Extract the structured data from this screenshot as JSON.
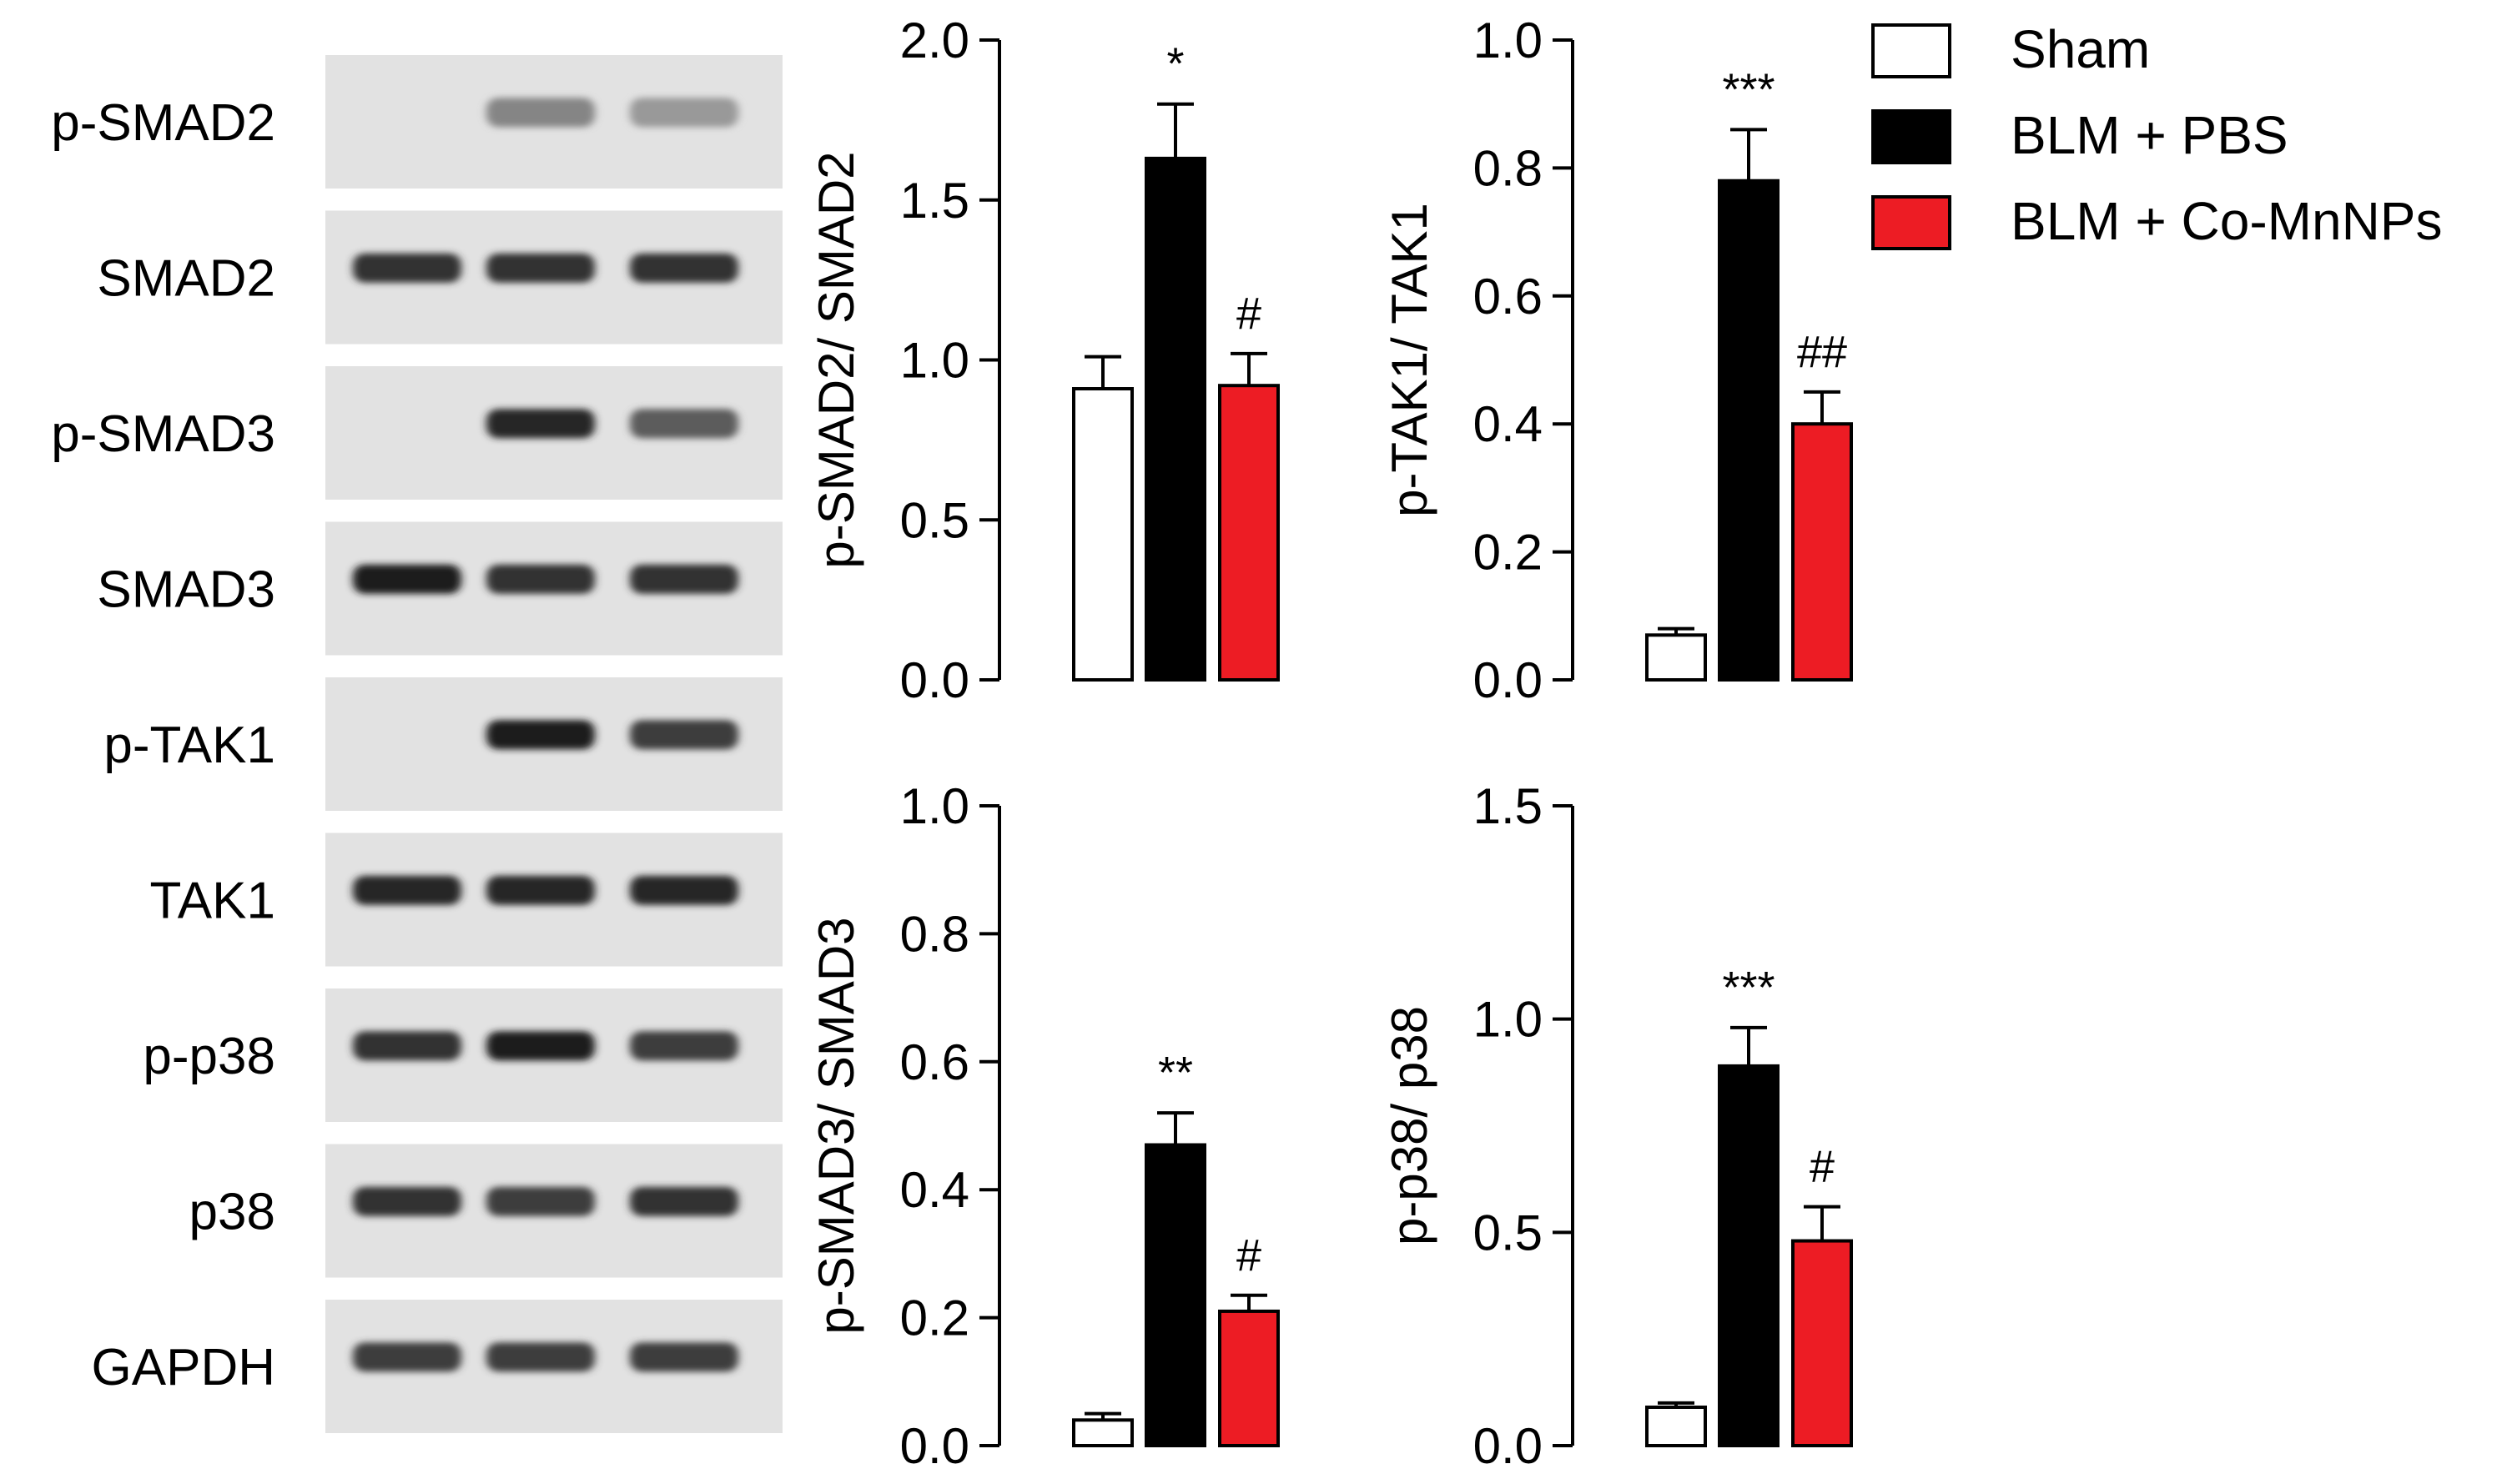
{
  "colors": {
    "sham": "#ffffff",
    "blm_pbs": "#000000",
    "blm_comnps": "#ed1c24",
    "outline": "#000000"
  },
  "blot": {
    "labels": [
      "p-SMAD2",
      "SMAD2",
      "p-SMAD3",
      "SMAD3",
      "p-TAK1",
      "TAK1",
      "p-p38",
      "p38",
      "GAPDH"
    ],
    "lanes": 3,
    "band_intensity": [
      [
        0.0,
        0.5,
        0.4
      ],
      [
        0.9,
        0.9,
        0.9
      ],
      [
        0.0,
        0.95,
        0.7
      ],
      [
        1.0,
        0.9,
        0.9
      ],
      [
        0.0,
        1.0,
        0.85
      ],
      [
        0.95,
        0.95,
        0.95
      ],
      [
        0.9,
        1.0,
        0.85
      ],
      [
        0.9,
        0.85,
        0.9
      ],
      [
        0.85,
        0.85,
        0.85
      ]
    ]
  },
  "legend": {
    "items": [
      {
        "label": "Sham",
        "color": "#ffffff"
      },
      {
        "label": "BLM + PBS",
        "color": "#000000"
      },
      {
        "label": "BLM + Co-MnNPs",
        "color": "#ed1c24"
      }
    ]
  },
  "chart_data": [
    {
      "type": "bar",
      "categories": [
        "Sham",
        "BLM + PBS",
        "BLM + Co-MnNPs"
      ],
      "values": [
        0.91,
        1.63,
        0.92
      ],
      "errors": [
        0.1,
        0.17,
        0.1
      ],
      "annotations": [
        "",
        "*",
        "#"
      ],
      "ylabel": "p-SMAD2/ SMAD2",
      "ylim": [
        0,
        2.0
      ],
      "ticks": [
        "0.0",
        "0.5",
        "1.0",
        "1.5",
        "2.0"
      ]
    },
    {
      "type": "bar",
      "categories": [
        "Sham",
        "BLM + PBS",
        "BLM + Co-MnNPs"
      ],
      "values": [
        0.07,
        0.78,
        0.4
      ],
      "errors": [
        0.01,
        0.08,
        0.05
      ],
      "annotations": [
        "",
        "***",
        "##"
      ],
      "ylabel": "p-TAK1/ TAK1",
      "ylim": [
        0,
        1.0
      ],
      "ticks": [
        "0.0",
        "0.2",
        "0.4",
        "0.6",
        "0.8",
        "1.0"
      ]
    },
    {
      "type": "bar",
      "categories": [
        "Sham",
        "BLM + PBS",
        "BLM + Co-MnNPs"
      ],
      "values": [
        0.04,
        0.47,
        0.21
      ],
      "errors": [
        0.01,
        0.05,
        0.025
      ],
      "annotations": [
        "",
        "**",
        "#"
      ],
      "ylabel": "p-SMAD3/ SMAD3",
      "ylim": [
        0,
        1.0
      ],
      "ticks": [
        "0.0",
        "0.2",
        "0.4",
        "0.6",
        "0.8",
        "1.0"
      ]
    },
    {
      "type": "bar",
      "categories": [
        "Sham",
        "BLM + PBS",
        "BLM + Co-MnNPs"
      ],
      "values": [
        0.09,
        0.89,
        0.48
      ],
      "errors": [
        0.01,
        0.09,
        0.08
      ],
      "annotations": [
        "",
        "***",
        "#"
      ],
      "ylabel": "p-p38/ p38",
      "ylim": [
        0,
        1.5
      ],
      "ticks": [
        "0.0",
        "0.5",
        "1.0",
        "1.5"
      ]
    }
  ]
}
